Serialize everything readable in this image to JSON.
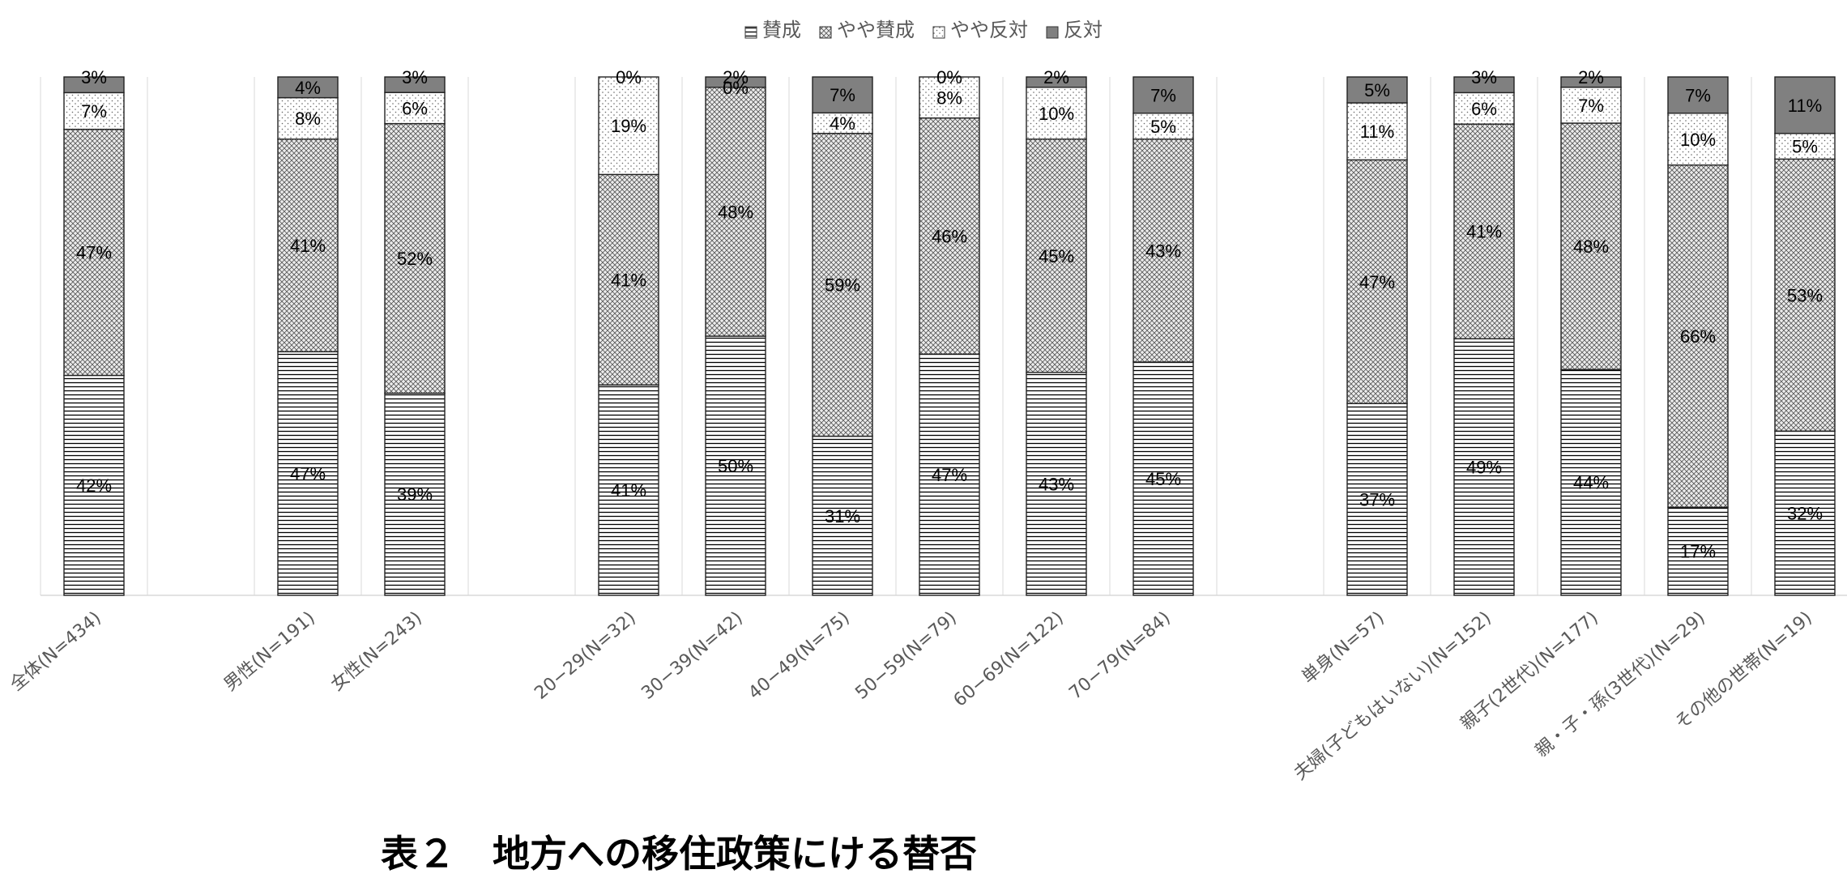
{
  "chart_data": {
    "type": "bar",
    "stacked": true,
    "percent": true,
    "categories": [
      "全体(N=434)",
      "",
      "男性(N=191)",
      "女性(N=243)",
      "",
      "20−29(N=32)",
      "30−39(N=42)",
      "40−49(N=75)",
      "50−59(N=79)",
      "60−69(N=122)",
      "70−79(N=84)",
      "",
      "単身(N=57)",
      "夫婦(子どもはいない)(N=152)",
      "親子(2世代)(N=177)",
      "親・子・孫(3世代)(N=29)",
      "その他の世帯(N=19)"
    ],
    "series": [
      {
        "name": "賛成",
        "pattern": "horizontal-lines",
        "values": [
          42,
          null,
          47,
          39,
          null,
          41,
          50,
          31,
          47,
          43,
          45,
          null,
          37,
          49,
          44,
          17,
          32
        ],
        "labels": [
          "42%",
          "",
          "47%",
          "39%",
          "",
          "41%",
          "50%",
          "31%",
          "47%",
          "43%",
          "45%",
          "",
          "37%",
          "49%",
          "44%",
          "17%",
          "32%"
        ]
      },
      {
        "name": "やや賛成",
        "pattern": "crosshatch",
        "values": [
          47,
          null,
          41,
          52,
          null,
          41,
          48,
          59,
          46,
          45,
          43,
          null,
          47,
          41,
          48,
          66,
          53
        ],
        "labels": [
          "47%",
          "",
          "41%",
          "52%",
          "",
          "41%",
          "48%",
          "59%",
          "46%",
          "45%",
          "43%",
          "",
          "47%",
          "41%",
          "48%",
          "66%",
          "53%"
        ]
      },
      {
        "name": "やや反対",
        "pattern": "dots",
        "values": [
          7,
          null,
          8,
          6,
          null,
          19,
          0,
          4,
          8,
          10,
          5,
          null,
          11,
          6,
          7,
          10,
          5
        ],
        "labels": [
          "7%",
          "",
          "8%",
          "6%",
          "",
          "19%",
          "0%",
          "4%",
          "8%",
          "10%",
          "5%",
          "",
          "11%",
          "6%",
          "7%",
          "10%",
          "5%"
        ]
      },
      {
        "name": "反対",
        "pattern": "solid",
        "color": "#808080",
        "values": [
          3,
          null,
          4,
          3,
          null,
          0,
          2,
          7,
          0,
          2,
          7,
          null,
          5,
          3,
          2,
          7,
          11
        ],
        "labels": [
          "3%",
          "",
          "4%",
          "3%",
          "",
          "0%",
          "2%",
          "7%",
          "0%",
          "2%",
          "7%",
          "",
          "5%",
          "3%",
          "2%",
          "7%",
          "11%"
        ]
      }
    ],
    "ylim": [
      0,
      100
    ],
    "legend_position": "top",
    "grid": "vertical"
  },
  "caption": "表２　地方への移住政策にける替否"
}
